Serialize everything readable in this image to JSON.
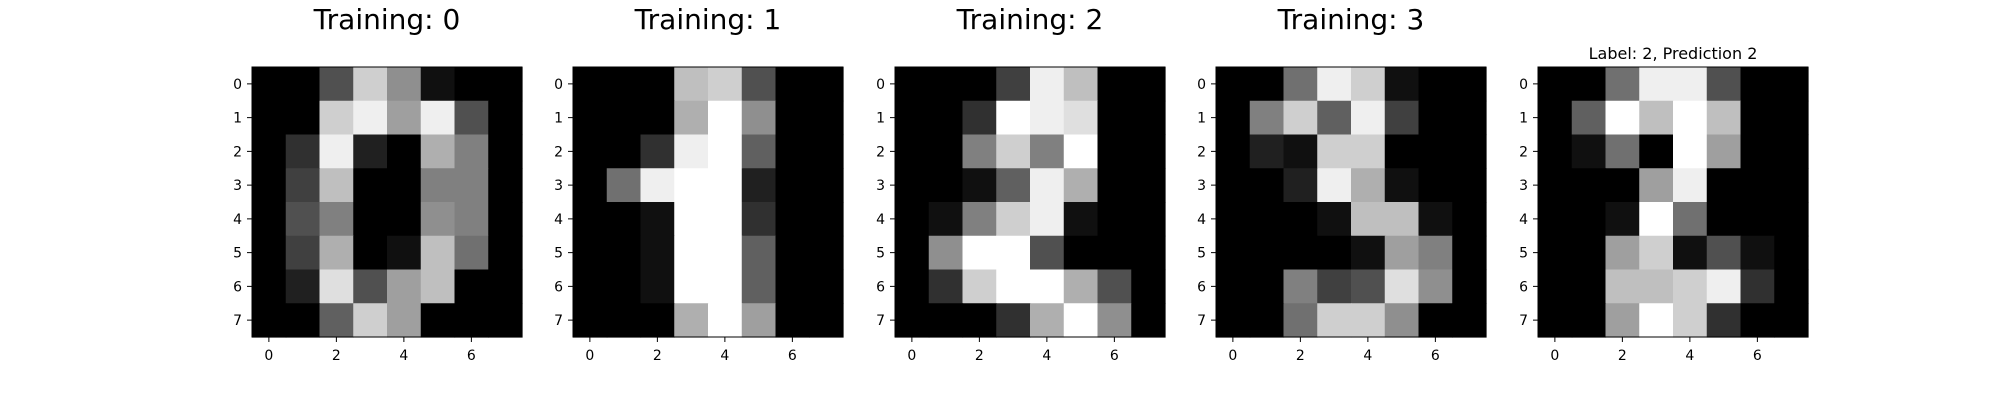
{
  "colors": {
    "background": "#ffffff",
    "axis": "#000000",
    "text": "#000000"
  },
  "chart_data": [
    {
      "type": "heatmap",
      "title": "Training: 0",
      "colormap": "gray",
      "x_ticks": [
        "0",
        "2",
        "4",
        "6"
      ],
      "y_ticks": [
        "0",
        "1",
        "2",
        "3",
        "4",
        "5",
        "6",
        "7"
      ],
      "xlim": [
        -0.5,
        7.5
      ],
      "ylim": [
        7.5,
        -0.5
      ],
      "grid": false,
      "values": [
        [
          0,
          0,
          5,
          13,
          9,
          1,
          0,
          0
        ],
        [
          0,
          0,
          13,
          15,
          10,
          15,
          5,
          0
        ],
        [
          0,
          3,
          15,
          2,
          0,
          11,
          8,
          0
        ],
        [
          0,
          4,
          12,
          0,
          0,
          8,
          8,
          0
        ],
        [
          0,
          5,
          8,
          0,
          0,
          9,
          8,
          0
        ],
        [
          0,
          4,
          11,
          0,
          1,
          12,
          7,
          0
        ],
        [
          0,
          2,
          14,
          5,
          10,
          12,
          0,
          0
        ],
        [
          0,
          0,
          6,
          13,
          10,
          0,
          0,
          0
        ]
      ]
    },
    {
      "type": "heatmap",
      "title": "Training: 1",
      "colormap": "gray",
      "x_ticks": [
        "0",
        "2",
        "4",
        "6"
      ],
      "y_ticks": [
        "0",
        "1",
        "2",
        "3",
        "4",
        "5",
        "6",
        "7"
      ],
      "xlim": [
        -0.5,
        7.5
      ],
      "ylim": [
        7.5,
        -0.5
      ],
      "grid": false,
      "values": [
        [
          0,
          0,
          0,
          12,
          13,
          5,
          0,
          0
        ],
        [
          0,
          0,
          0,
          11,
          16,
          9,
          0,
          0
        ],
        [
          0,
          0,
          3,
          15,
          16,
          6,
          0,
          0
        ],
        [
          0,
          7,
          15,
          16,
          16,
          2,
          0,
          0
        ],
        [
          0,
          0,
          1,
          16,
          16,
          3,
          0,
          0
        ],
        [
          0,
          0,
          1,
          16,
          16,
          6,
          0,
          0
        ],
        [
          0,
          0,
          1,
          16,
          16,
          6,
          0,
          0
        ],
        [
          0,
          0,
          0,
          11,
          16,
          10,
          0,
          0
        ]
      ]
    },
    {
      "type": "heatmap",
      "title": "Training: 2",
      "colormap": "gray",
      "x_ticks": [
        "0",
        "2",
        "4",
        "6"
      ],
      "y_ticks": [
        "0",
        "1",
        "2",
        "3",
        "4",
        "5",
        "6",
        "7"
      ],
      "xlim": [
        -0.5,
        7.5
      ],
      "ylim": [
        7.5,
        -0.5
      ],
      "grid": false,
      "values": [
        [
          0,
          0,
          0,
          4,
          15,
          12,
          0,
          0
        ],
        [
          0,
          0,
          3,
          16,
          15,
          14,
          0,
          0
        ],
        [
          0,
          0,
          8,
          13,
          8,
          16,
          0,
          0
        ],
        [
          0,
          0,
          1,
          6,
          15,
          11,
          0,
          0
        ],
        [
          0,
          1,
          8,
          13,
          15,
          1,
          0,
          0
        ],
        [
          0,
          9,
          16,
          16,
          5,
          0,
          0,
          0
        ],
        [
          0,
          3,
          13,
          16,
          16,
          11,
          5,
          0
        ],
        [
          0,
          0,
          0,
          3,
          11,
          16,
          9,
          0
        ]
      ]
    },
    {
      "type": "heatmap",
      "title": "Training: 3",
      "colormap": "gray",
      "x_ticks": [
        "0",
        "2",
        "4",
        "6"
      ],
      "y_ticks": [
        "0",
        "1",
        "2",
        "3",
        "4",
        "5",
        "6",
        "7"
      ],
      "xlim": [
        -0.5,
        7.5
      ],
      "ylim": [
        7.5,
        -0.5
      ],
      "grid": false,
      "values": [
        [
          0,
          0,
          7,
          15,
          13,
          1,
          0,
          0
        ],
        [
          0,
          8,
          13,
          6,
          15,
          4,
          0,
          0
        ],
        [
          0,
          2,
          1,
          13,
          13,
          0,
          0,
          0
        ],
        [
          0,
          0,
          2,
          15,
          11,
          1,
          0,
          0
        ],
        [
          0,
          0,
          0,
          1,
          12,
          12,
          1,
          0
        ],
        [
          0,
          0,
          0,
          0,
          1,
          10,
          8,
          0
        ],
        [
          0,
          0,
          8,
          4,
          5,
          14,
          9,
          0
        ],
        [
          0,
          0,
          7,
          13,
          13,
          9,
          0,
          0
        ]
      ]
    },
    {
      "type": "heatmap",
      "title": "Label: 2, Prediction 2",
      "colormap": "gray",
      "x_ticks": [
        "0",
        "2",
        "4",
        "6"
      ],
      "y_ticks": [
        "0",
        "1",
        "2",
        "3",
        "4",
        "5",
        "6",
        "7"
      ],
      "xlim": [
        -0.5,
        7.5
      ],
      "ylim": [
        7.5,
        -0.5
      ],
      "grid": false,
      "values": [
        [
          0,
          0,
          7,
          15,
          15,
          5,
          0,
          0
        ],
        [
          0,
          6,
          16,
          12,
          16,
          12,
          0,
          0
        ],
        [
          0,
          1,
          7,
          0,
          16,
          10,
          0,
          0
        ],
        [
          0,
          0,
          0,
          10,
          15,
          0,
          0,
          0
        ],
        [
          0,
          0,
          1,
          16,
          7,
          0,
          0,
          0
        ],
        [
          0,
          0,
          10,
          13,
          1,
          5,
          1,
          0
        ],
        [
          0,
          0,
          12,
          12,
          13,
          15,
          3,
          0
        ],
        [
          0,
          0,
          10,
          16,
          13,
          3,
          0,
          0
        ]
      ]
    }
  ]
}
